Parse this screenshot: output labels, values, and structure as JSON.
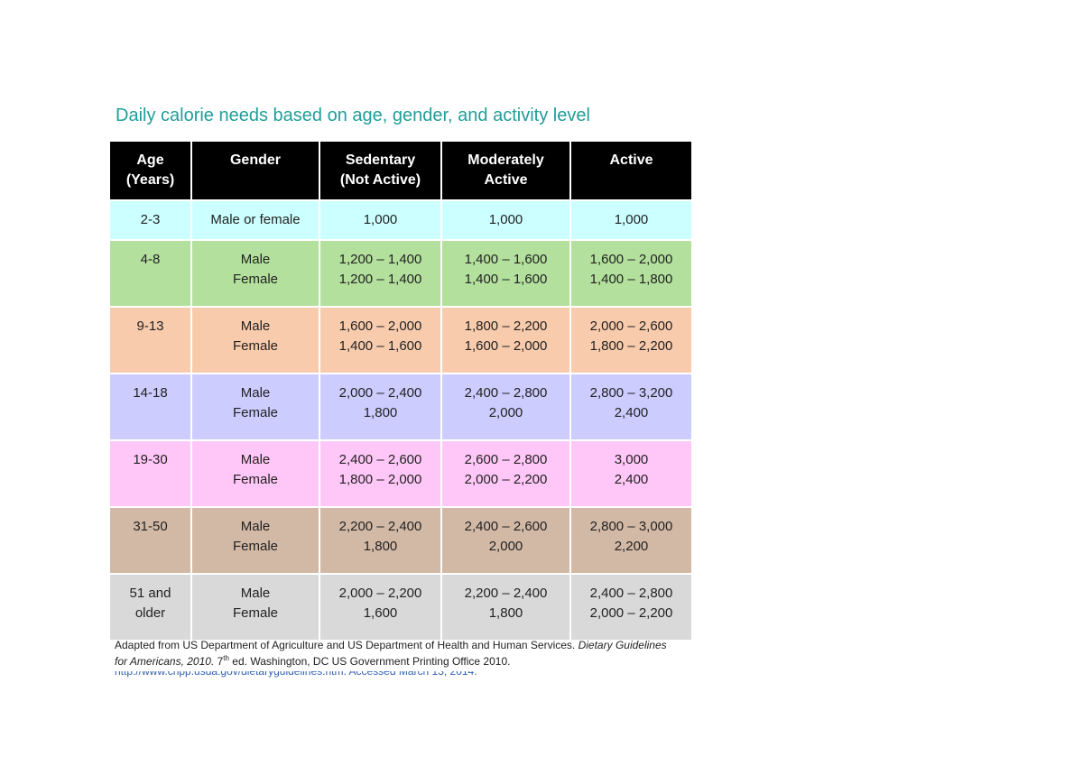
{
  "title": "Daily calorie needs based on age, gender, and activity level",
  "colors": {
    "title": "#1f9e9a",
    "header_bg": "#000000",
    "row_2_3": "#ccffff",
    "row_4_8": "#b3e09d",
    "row_9_13": "#f8cbad",
    "row_14_18": "#ccccff",
    "row_19_30": "#ffc7f7",
    "row_31_50": "#d2b9a6",
    "row_51_older": "#d9d9d9"
  },
  "table": {
    "headers": {
      "age": [
        "Age",
        "(Years)"
      ],
      "gender": [
        "Gender"
      ],
      "sedentary": [
        "Sedentary",
        "(Not Active)"
      ],
      "moderate": [
        "Moderately",
        "Active"
      ],
      "active": [
        "Active"
      ]
    },
    "rows": [
      {
        "age": [
          "2-3"
        ],
        "gender": [
          "Male or female"
        ],
        "sedentary": [
          "1,000"
        ],
        "moderate": [
          "1,000"
        ],
        "active": [
          "1,000"
        ]
      },
      {
        "age": [
          "4-8"
        ],
        "gender": [
          "Male",
          "Female"
        ],
        "sedentary": [
          "1,200 – 1,400",
          "1,200 – 1,400"
        ],
        "moderate": [
          "1,400 – 1,600",
          "1,400 – 1,600"
        ],
        "active": [
          "1,600 – 2,000",
          "1,400 – 1,800"
        ]
      },
      {
        "age": [
          "9-13"
        ],
        "gender": [
          "Male",
          "Female"
        ],
        "sedentary": [
          "1,600 – 2,000",
          "1,400 – 1,600"
        ],
        "moderate": [
          "1,800 – 2,200",
          "1,600 – 2,000"
        ],
        "active": [
          "2,000 – 2,600",
          "1,800 – 2,200"
        ]
      },
      {
        "age": [
          "14-18"
        ],
        "gender": [
          "Male",
          "Female"
        ],
        "sedentary": [
          "2,000 – 2,400",
          "1,800"
        ],
        "moderate": [
          "2,400 – 2,800",
          "2,000"
        ],
        "active": [
          "2,800 – 3,200",
          "2,400"
        ]
      },
      {
        "age": [
          "19-30"
        ],
        "gender": [
          "Male",
          "Female"
        ],
        "sedentary": [
          "2,400 – 2,600",
          "1,800 – 2,000"
        ],
        "moderate": [
          "2,600 – 2,800",
          "2,000 – 2,200"
        ],
        "active": [
          "3,000",
          "2,400"
        ]
      },
      {
        "age": [
          "31-50"
        ],
        "gender": [
          "Male",
          "Female"
        ],
        "sedentary": [
          "2,200 – 2,400",
          "1,800"
        ],
        "moderate": [
          "2,400 – 2,600",
          "2,000"
        ],
        "active": [
          "2,800 – 3,000",
          "2,200"
        ]
      },
      {
        "age": [
          "51 and",
          "older"
        ],
        "gender": [
          "Male",
          "Female"
        ],
        "sedentary": [
          "2,000 – 2,200",
          "1,600"
        ],
        "moderate": [
          "2,200 – 2,400",
          "1,800"
        ],
        "active": [
          "2,400 – 2,800",
          "2,000 – 2,200"
        ]
      }
    ]
  },
  "footer": {
    "text_1": "Adapted from US Department of Agriculture and US Department of Health and Human Services. ",
    "italic_1": "Dietary Guidelines for Americans, 2010.",
    "text_2": " 7",
    "superscript": "th",
    "text_3": " ed. Washington, DC US Government Printing Office 2010.",
    "link_partial": "http://www.cnpp.usda.gov/dietaryguidelines.htm. Accessed March 13, 2014."
  }
}
